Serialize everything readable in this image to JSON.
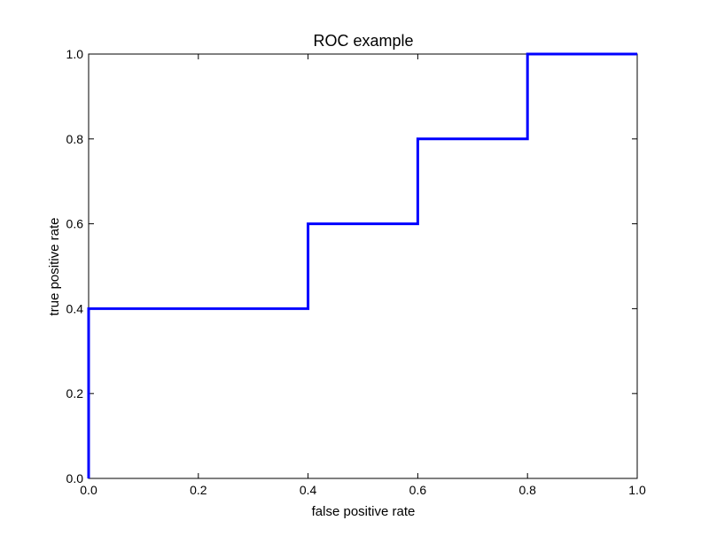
{
  "chart_data": {
    "type": "line",
    "title": "ROC example",
    "xlabel": "false positive rate",
    "ylabel": "true positive rate",
    "xlim": [
      0.0,
      1.0
    ],
    "ylim": [
      0.0,
      1.0
    ],
    "grid": false,
    "x_ticks": [
      "0.0",
      "0.2",
      "0.4",
      "0.6",
      "0.8",
      "1.0"
    ],
    "y_ticks": [
      "0.0",
      "0.2",
      "0.4",
      "0.6",
      "0.8",
      "1.0"
    ],
    "series": [
      {
        "color": "#0000ff",
        "x": [
          0.0,
          0.0,
          0.4,
          0.4,
          0.6,
          0.6,
          0.8,
          0.8,
          1.0
        ],
        "y": [
          0.0,
          0.4,
          0.4,
          0.6,
          0.6,
          0.8,
          0.8,
          1.0,
          1.0
        ]
      }
    ]
  }
}
